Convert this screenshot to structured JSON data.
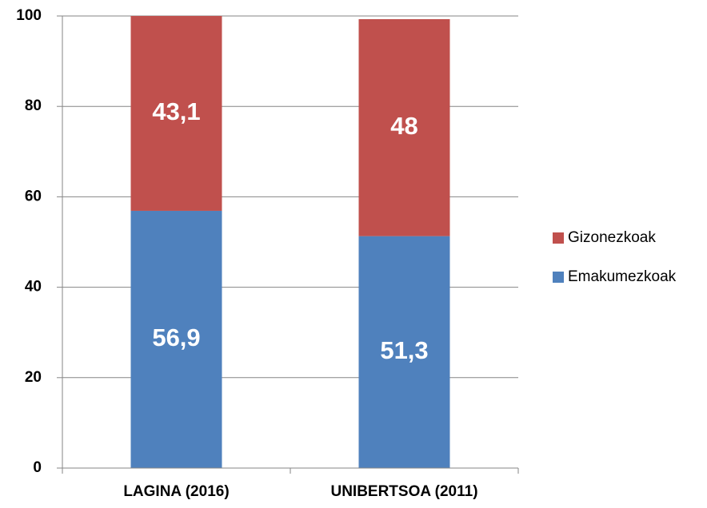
{
  "chart_data": {
    "type": "stacked_bar",
    "categories": [
      "LAGINA (2016)",
      "UNIBERTSOA (2011)"
    ],
    "series": [
      {
        "name": "Emakumezkoak",
        "color": "#4f81bd",
        "values": [
          56.9,
          51.3
        ],
        "value_labels": [
          "56,9",
          "51,3"
        ]
      },
      {
        "name": "Gizonezkoak",
        "color": "#c0504d",
        "values": [
          43.1,
          48
        ],
        "value_labels": [
          "43,1",
          "48"
        ]
      }
    ],
    "ylim": [
      0,
      100
    ],
    "yticks": [
      0,
      20,
      40,
      60,
      80,
      100
    ],
    "grid": true,
    "legend": "right"
  }
}
